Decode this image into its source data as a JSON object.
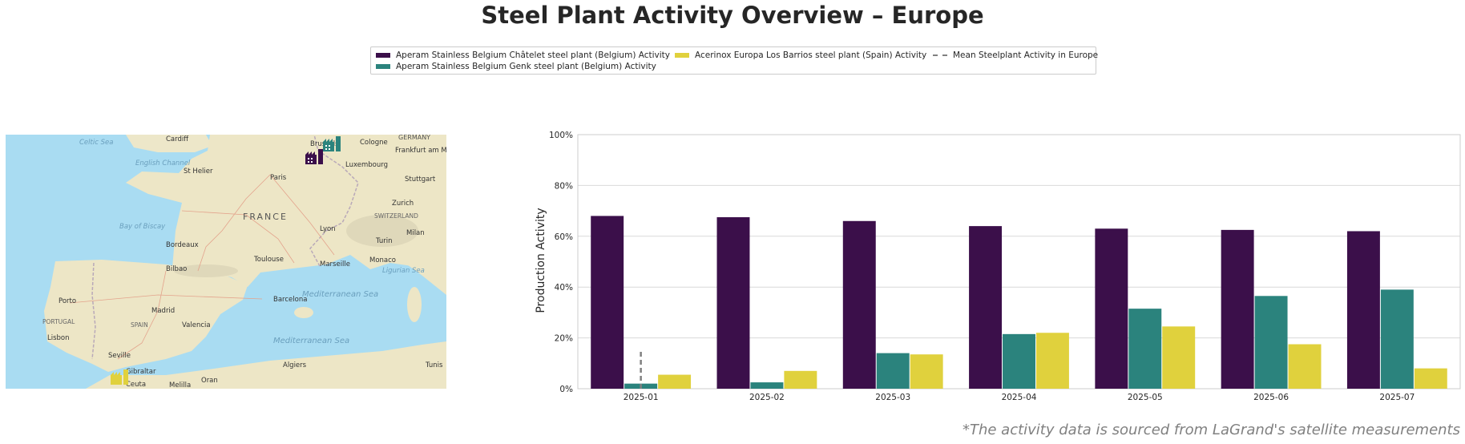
{
  "title": "Steel Plant Activity Overview – Europe",
  "footnote": "*The activity data is sourced from LaGrand's satellite measurements",
  "legend": {
    "items": [
      {
        "label": "Aperam Stainless Belgium Châtelet steel plant (Belgium) Activity",
        "color": "#3b0f4a",
        "style": "bar"
      },
      {
        "label": "Aperam Stainless Belgium Genk steel plant (Belgium) Activity",
        "color": "#2b837d",
        "style": "bar"
      },
      {
        "label": "Acerinox Europa Los Barrios steel plant (Spain) Activity",
        "color": "#e0d13d",
        "style": "bar"
      },
      {
        "label": "Mean Steelplant Activity in Europe",
        "color": "#808080",
        "style": "dashed"
      }
    ]
  },
  "map": {
    "labels": {
      "celtic_sea": "Celtic Sea",
      "cardiff": "Cardiff",
      "germany": "GERMANY",
      "cologne": "Cologne",
      "brussels": "Brussels",
      "frankfurt": "Frankfurt am Main",
      "english_channel": "English Channel",
      "st_helier": "St Helier",
      "paris": "Paris",
      "luxembourg": "Luxembourg",
      "stuttgart": "Stuttgart",
      "zurich": "Zurich",
      "france": "FRANCE",
      "switzerland": "SWITZERLAND",
      "bay_of_biscay": "Bay of Biscay",
      "lyon": "Lyon",
      "milan": "Milan",
      "turin": "Turin",
      "bordeaux": "Bordeaux",
      "toulouse": "Toulouse",
      "marseille": "Marseille",
      "monaco": "Monaco",
      "ligurian_sea": "Ligurian Sea",
      "bilbao": "Bilbao",
      "porto": "Porto",
      "barcelona": "Barcelona",
      "mediterranean_sea": "Mediterranean Sea",
      "madrid": "Madrid",
      "portugal": "PORTUGAL",
      "spain": "SPAIN",
      "valencia": "Valencia",
      "lisbon": "Lisbon",
      "seville": "Seville",
      "algiers": "Algiers",
      "tunis": "Tunis",
      "gibraltar": "Gibraltar",
      "ceuta": "Ceuta",
      "melilla": "Melilla",
      "oran": "Oran"
    },
    "markers": [
      {
        "name": "Aperam Stainless Belgium Châtelet",
        "color": "#3b0f4a",
        "icon": "factory-icon"
      },
      {
        "name": "Aperam Stainless Belgium Genk",
        "color": "#2b837d",
        "icon": "factory-icon"
      },
      {
        "name": "Acerinox Europa Los Barrios",
        "color": "#e0d13d",
        "icon": "factory-icon"
      }
    ]
  },
  "chart_data": {
    "type": "bar",
    "categories": [
      "2025-01",
      "2025-02",
      "2025-03",
      "2025-04",
      "2025-05",
      "2025-06",
      "2025-07"
    ],
    "series": [
      {
        "name": "Aperam Stainless Belgium Châtelet steel plant (Belgium) Activity",
        "color": "#3b0f4a",
        "values": [
          68,
          67.5,
          66,
          64,
          63,
          62.5,
          62
        ]
      },
      {
        "name": "Aperam Stainless Belgium Genk steel plant (Belgium) Activity",
        "color": "#2b837d",
        "values": [
          2,
          2.5,
          14,
          21.5,
          31.5,
          36.5,
          39
        ]
      },
      {
        "name": "Acerinox Europa Los Barrios steel plant (Spain) Activity",
        "color": "#e0d13d",
        "values": [
          5.5,
          7,
          13.5,
          22,
          24.5,
          17.5,
          8
        ]
      }
    ],
    "mean": {
      "name": "Mean Steelplant Activity in Europe",
      "category": "2025-01",
      "range": [
        0,
        15
      ],
      "style": "dashed",
      "color": "#808080"
    },
    "ylabel": "Production Activity",
    "xlabel": "",
    "ylim": [
      0,
      100
    ],
    "yticks": [
      0,
      20,
      40,
      60,
      80,
      100
    ],
    "ytick_labels": [
      "0%",
      "20%",
      "40%",
      "60%",
      "80%",
      "100%"
    ],
    "grid": true
  }
}
